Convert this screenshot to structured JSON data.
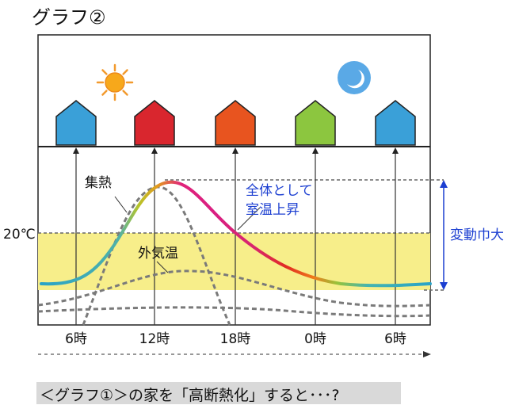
{
  "title": "グラフ②",
  "labels": {
    "collect_heat": "集熱",
    "outside_temp": "外気温",
    "overall_rise_line1": "全体として",
    "overall_rise_line2": "室温上昇",
    "fluctuation": "変動巾大",
    "temp_20": "20℃"
  },
  "time_ticks": [
    "6時",
    "12時",
    "18時",
    "0時",
    "6時"
  ],
  "house_colors": [
    "#3aa0d8",
    "#d9262e",
    "#e8541f",
    "#8cc63f",
    "#3aa0d8"
  ],
  "colors": {
    "comfort_band": "#f7ee8a",
    "annotation_blue": "#1c3fd1",
    "dashed_gray": "#7a7a7a"
  },
  "icons": [
    "sun-icon",
    "moon-icon"
  ],
  "caption": "＜グラフ①＞の家を「高断熱化」すると･･･?"
}
